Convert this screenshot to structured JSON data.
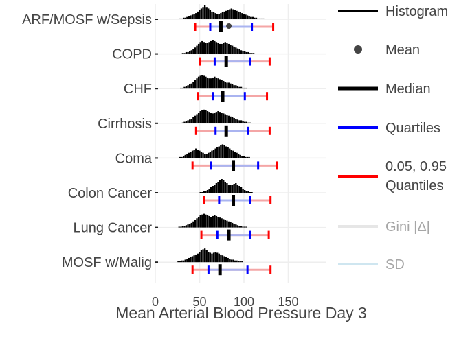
{
  "chart_data": {
    "type": "horizontal-box-histogram",
    "xlabel": "Mean Arterial Blood Pressure Day 3",
    "xlim": [
      0,
      190
    ],
    "xticks": [
      0,
      50,
      100,
      150
    ],
    "grid": true,
    "categories": [
      {
        "name": "ARF/MOSF w/Sepsis",
        "q05": 45,
        "q25": 62,
        "median": 74,
        "mean": 83,
        "q75": 109,
        "q95": 133,
        "hist": {
          "start": 27,
          "width": 2,
          "counts": [
            1,
            1,
            2,
            2,
            3,
            4,
            5,
            6,
            7,
            8,
            10,
            12,
            14,
            16,
            18,
            16,
            14,
            12,
            10,
            9,
            8,
            7,
            7,
            8,
            9,
            10,
            11,
            12,
            13,
            14,
            13,
            12,
            11,
            10,
            9,
            8,
            7,
            6,
            5,
            4,
            3,
            3,
            2,
            2,
            1,
            1,
            1,
            1
          ]
        }
      },
      {
        "name": "COPD",
        "q05": 50,
        "q25": 67,
        "median": 80,
        "mean": 80,
        "q75": 107,
        "q95": 129,
        "hist": {
          "start": 30,
          "width": 2,
          "counts": [
            1,
            1,
            2,
            2,
            3,
            4,
            5,
            7,
            9,
            11,
            13,
            14,
            13,
            12,
            12,
            13,
            14,
            15,
            14,
            13,
            12,
            11,
            11,
            12,
            13,
            12,
            11,
            10,
            9,
            8,
            7,
            6,
            5,
            4,
            3,
            3,
            2,
            2,
            1,
            1,
            1
          ]
        }
      },
      {
        "name": "CHF",
        "q05": 48,
        "q25": 65,
        "median": 76,
        "mean": 76,
        "q75": 101,
        "q95": 126,
        "hist": {
          "start": 28,
          "width": 2,
          "counts": [
            1,
            1,
            2,
            3,
            4,
            5,
            6,
            8,
            10,
            12,
            14,
            15,
            16,
            15,
            14,
            13,
            12,
            12,
            13,
            14,
            13,
            12,
            11,
            10,
            9,
            8,
            7,
            7,
            6,
            5,
            4,
            4,
            3,
            2,
            2,
            1,
            1,
            1
          ]
        }
      },
      {
        "name": "Cirrhosis",
        "q05": 46,
        "q25": 68,
        "median": 80,
        "mean": 80,
        "q75": 105,
        "q95": 129,
        "hist": {
          "start": 30,
          "width": 2,
          "counts": [
            1,
            2,
            3,
            4,
            5,
            6,
            8,
            10,
            12,
            14,
            16,
            17,
            18,
            17,
            16,
            15,
            14,
            13,
            14,
            15,
            16,
            15,
            14,
            13,
            12,
            11,
            10,
            9,
            8,
            7,
            6,
            5,
            4,
            4,
            3,
            2,
            2,
            1,
            1
          ]
        }
      },
      {
        "name": "Coma",
        "q05": 42,
        "q25": 63,
        "median": 88,
        "mean": 88,
        "q75": 116,
        "q95": 137,
        "hist": {
          "start": 27,
          "width": 2,
          "counts": [
            1,
            1,
            2,
            3,
            4,
            5,
            6,
            7,
            8,
            9,
            8,
            7,
            6,
            5,
            4,
            4,
            5,
            6,
            7,
            8,
            9,
            10,
            11,
            12,
            13,
            12,
            11,
            10,
            9,
            8,
            7,
            6,
            5,
            4,
            3,
            2,
            2,
            1,
            1,
            1
          ]
        }
      },
      {
        "name": "Colon Cancer",
        "q05": 55,
        "q25": 72,
        "median": 88,
        "mean": 88,
        "q75": 107,
        "q95": 130,
        "hist": {
          "start": 50,
          "width": 2,
          "counts": [
            1,
            1,
            2,
            3,
            4,
            6,
            8,
            10,
            12,
            14,
            16,
            18,
            20,
            18,
            16,
            14,
            12,
            11,
            12,
            13,
            14,
            12,
            10,
            8,
            6,
            4,
            3,
            2,
            1,
            1
          ]
        }
      },
      {
        "name": "Lung Cancer",
        "q05": 52,
        "q25": 70,
        "median": 83,
        "mean": 83,
        "q75": 107,
        "q95": 128,
        "hist": {
          "start": 26,
          "width": 2,
          "counts": [
            1,
            1,
            2,
            2,
            3,
            4,
            5,
            6,
            8,
            10,
            12,
            14,
            16,
            17,
            18,
            17,
            16,
            15,
            14,
            15,
            16,
            15,
            14,
            13,
            12,
            11,
            10,
            9,
            8,
            7,
            6,
            5,
            4,
            3,
            2,
            2,
            1,
            1,
            1
          ]
        }
      },
      {
        "name": "MOSF w/Malig",
        "q05": 42,
        "q25": 60,
        "median": 73,
        "mean": 73,
        "q75": 104,
        "q95": 130,
        "hist": {
          "start": 25,
          "width": 2,
          "counts": [
            1,
            1,
            2,
            2,
            3,
            4,
            5,
            6,
            7,
            8,
            9,
            10,
            12,
            14,
            15,
            16,
            14,
            12,
            11,
            10,
            11,
            12,
            11,
            10,
            9,
            8,
            7,
            6,
            5,
            4,
            3,
            3,
            2,
            2,
            1,
            1,
            1
          ]
        }
      }
    ],
    "legend": [
      {
        "label": "Histogram",
        "kind": "line",
        "color": "#000000",
        "width": 3
      },
      {
        "label": "Mean",
        "kind": "dot",
        "color": "#444444"
      },
      {
        "label": "Median",
        "kind": "line",
        "color": "#000000",
        "width": 5
      },
      {
        "label": "Quartiles",
        "kind": "line",
        "color": "#0000ff",
        "width": 4
      },
      {
        "label": "0.05, 0.95\nQuantiles",
        "kind": "line",
        "color": "#ff0000",
        "width": 4
      },
      {
        "label": "Gini |Δ|",
        "kind": "line",
        "color": "#e6e6e6",
        "width": 4,
        "muted": true
      },
      {
        "label": "SD",
        "kind": "line",
        "color": "#cfe6f0",
        "width": 4,
        "muted": true
      }
    ],
    "colors": {
      "quantile": "#ff0000",
      "quantile_band": "#f4a6a6",
      "quartile": "#0000ff",
      "quartile_band": "#aab4f0",
      "median": "#000000",
      "mean": "#444444",
      "histogram": "#000000",
      "grid": "#eeeeee"
    }
  }
}
